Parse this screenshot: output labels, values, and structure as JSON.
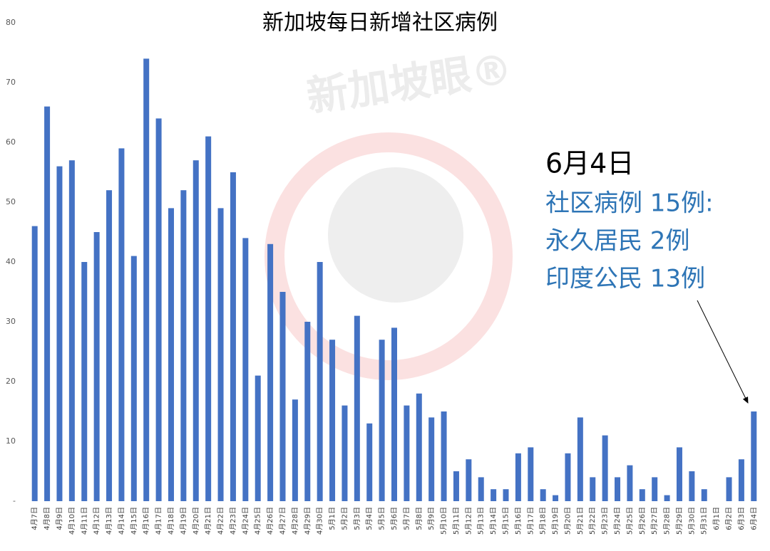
{
  "chart_data": {
    "type": "bar",
    "title": "新加坡每日新增社区病例",
    "watermark": "新加坡眼®",
    "categories": [
      "4月7日",
      "4月8日",
      "4月9日",
      "4月10日",
      "4月11日",
      "4月12日",
      "4月13日",
      "4月14日",
      "4月15日",
      "4月16日",
      "4月17日",
      "4月18日",
      "4月19日",
      "4月20日",
      "4月21日",
      "4月22日",
      "4月23日",
      "4月24日",
      "4月25日",
      "4月26日",
      "4月27日",
      "4月28日",
      "4月29日",
      "4月30日",
      "5月1日",
      "5月2日",
      "5月3日",
      "5月4日",
      "5月5日",
      "5月6日",
      "5月7日",
      "5月8日",
      "5月9日",
      "5月10日",
      "5月11日",
      "5月12日",
      "5月13日",
      "5月14日",
      "5月15日",
      "5月16日",
      "5月17日",
      "5月18日",
      "5月19日",
      "5月20日",
      "5月21日",
      "5月22日",
      "5月23日",
      "5月24日",
      "5月25日",
      "5月26日",
      "5月27日",
      "5月28日",
      "5月29日",
      "5月30日",
      "5月31日",
      "6月1日",
      "6月2日",
      "6月3日",
      "6月4日"
    ],
    "values": [
      46,
      66,
      56,
      57,
      40,
      45,
      52,
      59,
      41,
      74,
      64,
      49,
      52,
      57,
      61,
      49,
      55,
      44,
      21,
      43,
      35,
      17,
      30,
      40,
      27,
      16,
      31,
      13,
      27,
      29,
      16,
      18,
      14,
      15,
      5,
      7,
      4,
      2,
      2,
      8,
      9,
      2,
      1,
      8,
      14,
      4,
      11,
      4,
      6,
      2,
      4,
      1,
      9,
      5,
      2,
      0,
      4,
      7,
      15
    ],
    "color": "#4472c4",
    "ylim": [
      0,
      80
    ],
    "yticks": [
      {
        "value": 0,
        "label": "-"
      },
      10,
      20,
      30,
      40,
      50,
      60,
      70,
      80
    ],
    "grid": false,
    "annotation": {
      "heading": "6月4日",
      "lines": [
        "社区病例 15例:",
        "永久居民 2例",
        "印度公民 13例"
      ],
      "color": "#2e75b6"
    }
  }
}
